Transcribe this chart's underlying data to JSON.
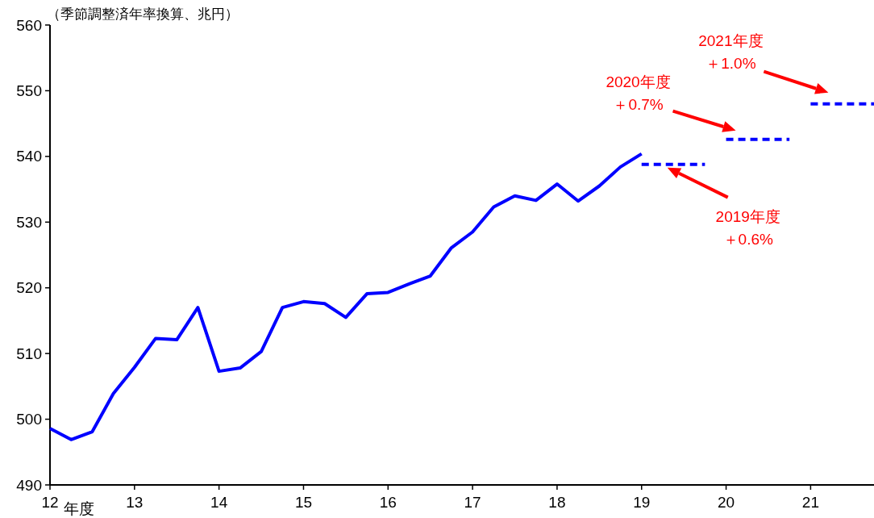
{
  "chart_data": {
    "type": "line",
    "ylabel": "（季節調整済年率換算、兆円）",
    "xlabel": "年度",
    "xlim": [
      12,
      21.75
    ],
    "xticks": [
      12,
      13,
      14,
      15,
      16,
      17,
      18,
      19,
      20,
      21
    ],
    "ylim": [
      490,
      560
    ],
    "yticks": [
      490,
      500,
      510,
      520,
      530,
      540,
      550,
      560
    ],
    "grid": false,
    "marker": "none",
    "series": [
      {
        "color": "#0000ff",
        "line_style": "solid",
        "x": [
          12,
          12.25,
          12.5,
          12.75,
          13,
          13.25,
          13.5,
          13.75,
          14,
          14.25,
          14.5,
          14.75,
          15,
          15.25,
          15.5,
          15.75,
          16,
          16.25,
          16.5,
          16.75,
          17,
          17.25,
          17.5,
          17.75,
          18,
          18.25,
          18.5,
          18.75,
          19
        ],
        "values": [
          498.6,
          496.9,
          498.1,
          503.9,
          507.9,
          512.3,
          512.1,
          517.0,
          507.3,
          507.8,
          510.3,
          517.0,
          517.9,
          517.6,
          515.5,
          519.1,
          519.3,
          520.6,
          521.8,
          526.1,
          528.5,
          532.3,
          534.0,
          533.3,
          535.8,
          533.2,
          535.5,
          538.4,
          540.4
        ]
      },
      {
        "color": "#0000ff",
        "line_style": "dashed",
        "x": [
          19,
          19.75
        ],
        "values": [
          538.8,
          538.8
        ]
      },
      {
        "color": "#0000ff",
        "line_style": "dashed",
        "x": [
          20,
          20.75
        ],
        "values": [
          542.6,
          542.6
        ]
      },
      {
        "color": "#0000ff",
        "line_style": "dashed",
        "x": [
          21,
          21.75
        ],
        "values": [
          548.0,
          548.0
        ]
      }
    ],
    "annotations": [
      "2021年度",
      "＋1.0%",
      "2020年度",
      "＋0.7%",
      "2019年度",
      "＋0.6%"
    ]
  }
}
